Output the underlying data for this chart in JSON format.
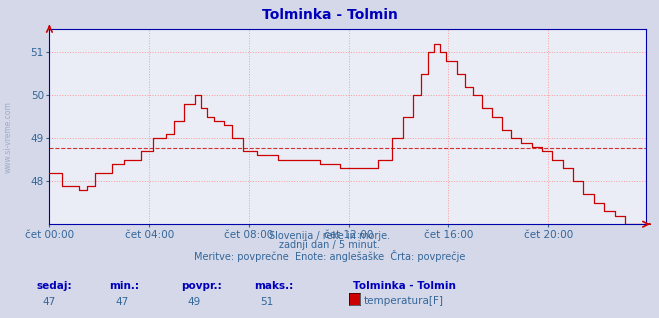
{
  "title": "Tolminka - Tolmin",
  "title_color": "#0000bb",
  "bg_color": "#d4d8e8",
  "plot_bg_color": "#eaedf5",
  "grid_color": "#ff9999",
  "axis_color": "#0000aa",
  "line_color": "#cc0000",
  "avg_value": 48.78,
  "ylim": [
    47.0,
    51.55
  ],
  "yticks": [
    48,
    49,
    50,
    51
  ],
  "xlim": [
    0,
    287
  ],
  "xtick_positions": [
    0,
    48,
    96,
    144,
    192,
    240
  ],
  "xtick_labels": [
    "čet 00:00",
    "čet 04:00",
    "čet 08:00",
    "čet 12:00",
    "čet 16:00",
    "čet 20:00"
  ],
  "tick_color": "#336699",
  "footer_line1": "Slovenija / reke in morje.",
  "footer_line2": "zadnji dan / 5 minut.",
  "footer_line3": "Meritve: povprečne  Enote: anglešaške  Črta: povprečje",
  "footer_color": "#336699",
  "stats_labels": [
    "sedaj:",
    "min.:",
    "povpr.:",
    "maks.:"
  ],
  "stats_values": [
    "47",
    "47",
    "49",
    "51"
  ],
  "stats_color": "#336699",
  "stats_bold_color": "#0000bb",
  "legend_title": "Tolminka - Tolmin",
  "legend_label": "temperatura[F]",
  "legend_box_color": "#cc0000",
  "watermark_color": "#8899bb",
  "left_watermark": "www.si-vreme.com"
}
